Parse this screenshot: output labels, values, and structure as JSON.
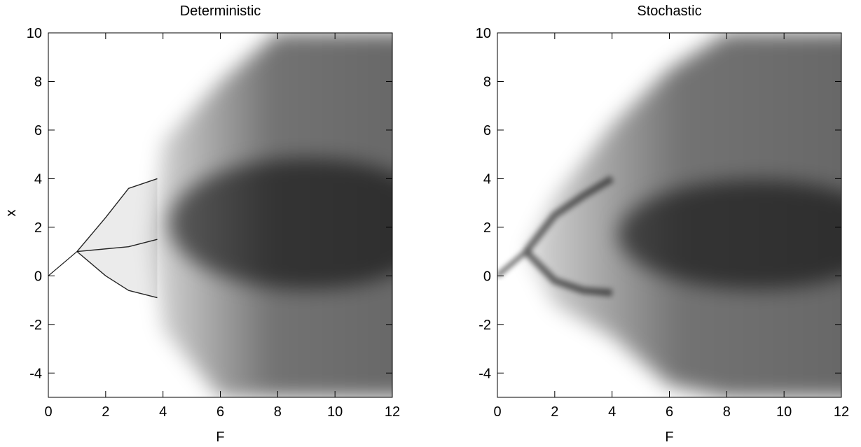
{
  "chart_data": [
    {
      "type": "heatmap",
      "title": "Deterministic",
      "xlabel": "F",
      "ylabel": "x",
      "xlim": [
        0,
        12
      ],
      "ylim": [
        -5,
        10
      ],
      "x_ticks": [
        0,
        2,
        4,
        6,
        8,
        10,
        12
      ],
      "y_ticks": [
        -4,
        -2,
        0,
        2,
        4,
        6,
        8,
        10
      ],
      "colormap": "greyscale density (white = low, black = high)",
      "grid": false,
      "features": {
        "fixed_point_line": {
          "x": [
            0,
            1
          ],
          "y": [
            0,
            1
          ]
        },
        "period_doubling_branches": [
          {
            "x": [
              1,
              2,
              2.8,
              3.8
            ],
            "y": [
              1,
              2.4,
              3.6,
              4.0
            ]
          },
          {
            "x": [
              1,
              2,
              2.8,
              3.8
            ],
            "y": [
              1,
              0.0,
              -0.6,
              -0.9
            ]
          },
          {
            "x": [
              1,
              2.8,
              3.8
            ],
            "y": [
              1,
              1.2,
              1.5
            ]
          }
        ],
        "chaotic_band_upper": {
          "x": [
            4,
            6,
            8,
            10,
            12
          ],
          "y": [
            5.5,
            8.0,
            10,
            10,
            10
          ]
        },
        "chaotic_band_lower": {
          "x": [
            4,
            6,
            8,
            10,
            12
          ],
          "y": [
            -2.2,
            -5,
            -5,
            -5,
            -5
          ]
        },
        "dense_core": {
          "x": [
            4,
            12
          ],
          "y": [
            1.8,
            2.5
          ]
        }
      }
    },
    {
      "type": "heatmap",
      "title": "Stochastic",
      "xlabel": "F",
      "ylabel": "",
      "xlim": [
        0,
        12
      ],
      "ylim": [
        -5,
        10
      ],
      "x_ticks": [
        0,
        2,
        4,
        6,
        8,
        10,
        12
      ],
      "y_ticks": [
        -4,
        -2,
        0,
        2,
        4,
        6,
        8,
        10
      ],
      "colormap": "greyscale density (white = low, black = high)",
      "grid": false,
      "features": {
        "fixed_point_line": {
          "x": [
            0,
            1
          ],
          "y": [
            0,
            1
          ]
        },
        "branches": [
          {
            "x": [
              1,
              2,
              3,
              4
            ],
            "y": [
              1,
              2.5,
              3.3,
              4.0
            ]
          },
          {
            "x": [
              1,
              2,
              3,
              4
            ],
            "y": [
              1,
              -0.2,
              -0.6,
              -0.7
            ]
          }
        ],
        "band_upper": {
          "x": [
            2,
            4,
            6,
            8,
            10,
            12
          ],
          "y": [
            3.2,
            6.2,
            8.5,
            10,
            10,
            10
          ]
        },
        "band_lower": {
          "x": [
            2,
            4,
            6,
            8,
            10,
            12
          ],
          "y": [
            -1.2,
            -2.5,
            -4.5,
            -5,
            -5,
            -5
          ]
        },
        "dense_core": {
          "x": [
            4,
            12
          ],
          "y": [
            1.2,
            2.2
          ]
        }
      }
    }
  ]
}
